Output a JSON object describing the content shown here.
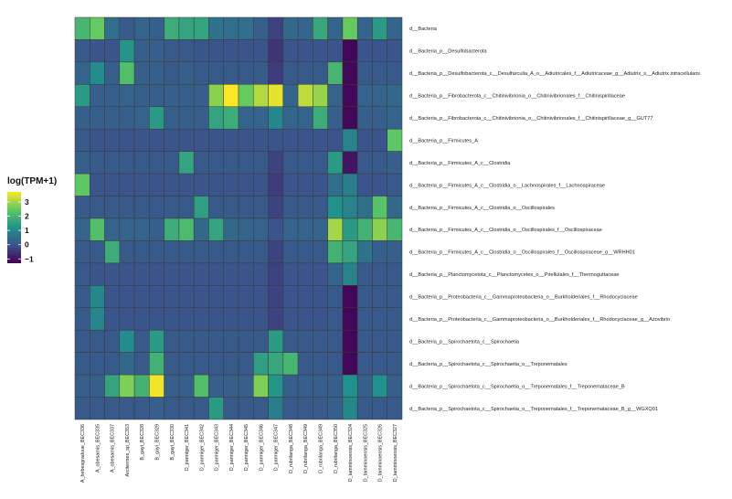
{
  "chart_data": {
    "type": "heatmap",
    "title": "",
    "xlabel": "",
    "ylabel": "",
    "legend": {
      "title": "log(TPM+1)",
      "placement": "left",
      "ticks": [
        "3",
        "2",
        "1",
        "0",
        "−1"
      ],
      "tick_values": [
        3,
        2,
        1,
        0,
        -1
      ],
      "range": [
        -1.3,
        3.7
      ]
    },
    "colorscale": [
      "#440154",
      "#3b528b",
      "#21918c",
      "#5ec962",
      "#fde725"
    ],
    "rows": [
      "d__Bacteria",
      "d__Bacteria_p__Desulfobacterota",
      "d__Bacteria_p__Desulfobacterota_c__Desulfarculia_A_o__Adiutricales_f__Adiutricaceae_g__Adiutrix_s__Adiutrix intracellularis",
      "d__Bacteria_p__Fibrobacterota_c__Chitinivibrionia_o__Chitinivibrionales_f__Chitinispirillaceae",
      "d__Bacteria_p__Fibrobacterota_c__Chitinivibrionia_o__Chitinivibrionales_f__Chitinispirillaceae_g__GUT77",
      "d__Bacteria_p__Firmicutes_A",
      "d__Bacteria_p__Firmicutes_A_c__Clostridia",
      "d__Bacteria_p__Firmicutes_A_c__Clostridia_o__Lachnospirales_f__Lachnospiraceae",
      "d__Bacteria_p__Firmicutes_A_c__Clostridia_o__Oscillospirales",
      "d__Bacteria_p__Firmicutes_A_c__Clostridia_o__Oscillospirales_f__Oscillospiraceae",
      "d__Bacteria_p__Firmicutes_A_c__Clostridia_o__Oscillospirales_f__Oscillospiraceae_g__WRHH01",
      "d__Bacteria_p__Planctomycetota_c__Planctomycetes_o__Pirellulales_f__Thermoguttaceae",
      "d__Bacteria_p__Proteobacteria_c__Gammaproteobacteria_o__Burkholderiales_f__Rhodocyclaceae",
      "d__Bacteria_p__Proteobacteria_c__Gammaproteobacteria_o__Burkholderiales_f__Rhodocyclaceae_g__Azovibrio",
      "d__Bacteria_p__Spirochaetota_c__Spirochaetia",
      "d__Bacteria_p__Spirochaetota_c__Spirochaetia_o__Treponematales",
      "d__Bacteria_p__Spirochaetota_c__Spirochaetia_o__Treponematales_f__Treponemataceae_B",
      "d__Bacteria_p__Spirochaetota_c__Spirochaetia_o__Treponematales_f__Treponemataceae_B_g__WGXQ01"
    ],
    "columns": [
      "A_hebesgraduue_BEC336",
      "A_obesarnis_BEC335",
      "A_obesarnis_BEC337",
      "Arcitermes_sp_BEC353",
      "B_gayi_BEC328",
      "B_gayi_BEC329",
      "B_gayi_BEC330",
      "D_parmiger_BEC341",
      "D_parmiger_BEC342",
      "D_parmiger_BEC343",
      "D_parmiger_BEC344",
      "D_parmiger_BEC345",
      "D_parmiger_BEC346",
      "D_parmiger_BEC347",
      "D_rubrilanga_BEC348",
      "D_rubrilanga_BEC349",
      "D_rubrilanga_BEC349",
      "D_rubrilanga_BEC350",
      "D_tamminoensis_BEC324",
      "D_tamminoensis_BEC325",
      "D_tamminoensis_BEC326",
      "D_tamminoensis_BEC327"
    ],
    "values": [
      [
        2.0,
        2.5,
        0.5,
        0.1,
        0.3,
        0.2,
        1.8,
        1.6,
        1.6,
        0.6,
        0.5,
        0.5,
        0.2,
        -0.3,
        0.4,
        0.3,
        1.7,
        0.3,
        2.5,
        0.3,
        1.4,
        0.3
      ],
      [
        0.1,
        0.0,
        0.0,
        1.3,
        0.2,
        0.2,
        0.1,
        0.1,
        0.0,
        0.0,
        0.0,
        0.0,
        0.0,
        -0.5,
        0.0,
        0.0,
        0.0,
        0.0,
        -1.2,
        0.0,
        0.0,
        0.0
      ],
      [
        0.3,
        1.1,
        0.2,
        2.2,
        0.2,
        0.2,
        0.1,
        0.2,
        0.1,
        0.1,
        0.1,
        0.1,
        0.1,
        -0.4,
        0.1,
        0.1,
        0.1,
        2.0,
        -1.2,
        0.1,
        0.1,
        0.1
      ],
      [
        1.4,
        0.2,
        0.2,
        0.3,
        0.2,
        0.2,
        0.2,
        0.2,
        0.2,
        2.8,
        3.7,
        2.5,
        3.1,
        3.5,
        0.3,
        3.2,
        2.9,
        0.3,
        -1.2,
        0.3,
        0.3,
        0.4
      ],
      [
        0.2,
        0.2,
        0.2,
        0.2,
        0.3,
        1.4,
        0.2,
        0.2,
        0.2,
        1.6,
        1.8,
        0.3,
        0.3,
        1.0,
        0.3,
        0.3,
        1.8,
        0.2,
        -1.2,
        0.2,
        0.2,
        0.3
      ],
      [
        0.1,
        0.0,
        0.0,
        0.0,
        0.0,
        0.0,
        0.0,
        0.0,
        0.0,
        0.0,
        0.0,
        0.0,
        0.0,
        0.0,
        0.0,
        0.0,
        0.0,
        0.0,
        0.9,
        0.0,
        0.0,
        2.4
      ],
      [
        0.2,
        0.1,
        0.1,
        0.1,
        0.1,
        0.1,
        0.1,
        1.6,
        0.1,
        0.1,
        0.1,
        0.1,
        0.1,
        -0.3,
        0.1,
        0.1,
        0.1,
        1.4,
        -1.0,
        0.1,
        0.1,
        0.2
      ],
      [
        2.4,
        0.0,
        0.0,
        0.0,
        0.0,
        0.0,
        0.0,
        0.0,
        0.0,
        0.0,
        0.0,
        0.0,
        0.0,
        -0.4,
        0.0,
        0.0,
        0.0,
        0.5,
        0.8,
        0.0,
        0.0,
        0.1
      ],
      [
        0.1,
        0.1,
        0.1,
        0.1,
        0.1,
        0.1,
        0.1,
        0.1,
        1.5,
        0.1,
        0.1,
        0.1,
        0.1,
        -0.3,
        0.1,
        0.1,
        0.1,
        1.2,
        0.9,
        0.5,
        2.3,
        0.4
      ],
      [
        0.3,
        2.2,
        0.3,
        0.3,
        0.3,
        0.2,
        1.8,
        2.1,
        0.4,
        1.6,
        0.4,
        0.3,
        0.3,
        0.0,
        0.3,
        0.3,
        0.3,
        3.0,
        1.4,
        1.9,
        2.8,
        2.0
      ],
      [
        0.1,
        0.1,
        1.8,
        0.1,
        0.1,
        0.1,
        0.1,
        0.1,
        0.1,
        0.1,
        0.1,
        0.1,
        0.1,
        -0.3,
        0.1,
        0.1,
        0.1,
        1.9,
        1.6,
        0.6,
        0.2,
        0.2
      ],
      [
        0.1,
        0.0,
        0.0,
        0.0,
        0.0,
        0.0,
        0.0,
        0.0,
        0.0,
        0.0,
        0.0,
        0.0,
        0.0,
        -0.3,
        0.0,
        0.0,
        0.0,
        0.3,
        0.9,
        0.1,
        0.1,
        0.1
      ],
      [
        0.1,
        1.0,
        0.0,
        0.0,
        0.0,
        0.0,
        0.0,
        0.0,
        0.0,
        0.0,
        0.0,
        0.0,
        0.0,
        -0.3,
        0.0,
        0.0,
        0.0,
        0.1,
        -1.2,
        0.1,
        0.1,
        0.1
      ],
      [
        0.1,
        1.0,
        0.0,
        0.0,
        0.0,
        0.0,
        0.0,
        0.0,
        0.0,
        0.0,
        0.0,
        0.0,
        0.0,
        -0.3,
        0.0,
        0.0,
        0.0,
        0.1,
        -1.2,
        0.1,
        0.1,
        0.1
      ],
      [
        0.1,
        0.1,
        0.1,
        1.1,
        0.1,
        1.4,
        0.1,
        0.1,
        0.1,
        0.1,
        0.1,
        0.1,
        0.1,
        1.4,
        0.1,
        0.1,
        0.1,
        0.1,
        -1.2,
        0.1,
        0.1,
        0.1
      ],
      [
        0.1,
        0.1,
        0.1,
        0.4,
        0.1,
        1.9,
        0.1,
        0.1,
        0.1,
        0.1,
        0.1,
        0.1,
        1.5,
        1.7,
        2.0,
        0.1,
        0.1,
        0.1,
        -1.2,
        0.1,
        0.1,
        0.1
      ],
      [
        0.2,
        0.2,
        1.6,
        2.7,
        1.9,
        3.6,
        0.2,
        0.2,
        2.2,
        0.2,
        0.2,
        0.2,
        2.7,
        1.3,
        0.2,
        0.2,
        0.2,
        0.2,
        1.2,
        0.2,
        1.2,
        0.2
      ],
      [
        0.1,
        0.1,
        0.1,
        0.1,
        0.1,
        0.2,
        0.1,
        0.1,
        0.1,
        1.4,
        0.1,
        0.1,
        0.1,
        0.8,
        0.1,
        0.1,
        0.1,
        0.2,
        1.0,
        0.1,
        0.1,
        0.1
      ]
    ]
  }
}
